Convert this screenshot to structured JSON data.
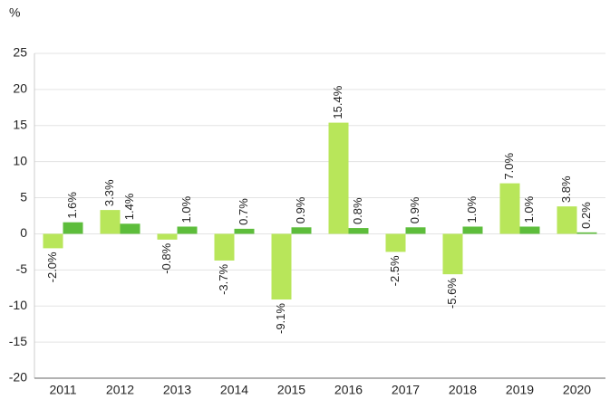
{
  "chart_data": {
    "type": "bar",
    "ylabel": "%",
    "categories": [
      "2011",
      "2012",
      "2013",
      "2014",
      "2015",
      "2016",
      "2017",
      "2018",
      "2019",
      "2020"
    ],
    "series": [
      {
        "color": "#b8e65a",
        "values": [
          -2.0,
          3.3,
          -0.8,
          -3.7,
          -9.1,
          15.4,
          -2.5,
          -5.6,
          7.0,
          3.8
        ],
        "value_labels": [
          "-2.0%",
          "3.3%",
          "-0.8%",
          "-3.7%",
          "-9.1%",
          "15.4%",
          "-2.5%",
          "-5.6%",
          "7.0%",
          "3.8%"
        ]
      },
      {
        "color": "#5dbd3b",
        "values": [
          1.6,
          1.4,
          1.0,
          0.7,
          0.9,
          0.8,
          0.9,
          1.0,
          1.0,
          0.2
        ],
        "value_labels": [
          "1.6%",
          "1.4%",
          "1.0%",
          "0.7%",
          "0.9%",
          "0.8%",
          "0.9%",
          "1.0%",
          "1.0%",
          "0.2%"
        ]
      }
    ],
    "ylim": [
      -20,
      25
    ],
    "yticks": [
      -20,
      -15,
      -10,
      -5,
      0,
      5,
      10,
      15,
      20,
      25
    ],
    "grid": true
  }
}
